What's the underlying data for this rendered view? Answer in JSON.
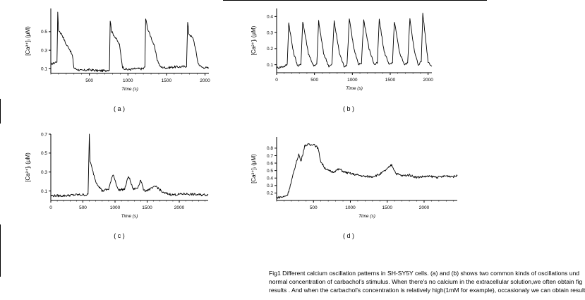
{
  "caption": {
    "line1": "Fig1  Different calcium oscillation patterns in SH-SY5Y cells. (a) and (b) shows two common kinds of  oscillations und",
    "line2": "normal  concentration of carbachol's stimulus. When there's no calcium in the extracellular solution,we often obtain fig",
    "line3": "results . And when the carbachol's concentration is relatively high(1mM for example), occasionaly we can obtain result"
  },
  "chart_data": [
    {
      "panel": "a",
      "type": "line",
      "label": "( a )",
      "ylabel": "[Ca²⁺]ᵢ (μM)",
      "xlabel": "Time (s)",
      "xlim": [
        0,
        2050
      ],
      "ylim": [
        0.05,
        0.75
      ],
      "xticks": [
        500,
        1000,
        1500,
        2000
      ],
      "yticks": [
        0.1,
        0.3,
        0.5
      ],
      "x": [
        0,
        40,
        80,
        90,
        100,
        150,
        200,
        240,
        260,
        280,
        300,
        320,
        400,
        500,
        600,
        700,
        760,
        770,
        790,
        850,
        890,
        930,
        960,
        1000,
        1100,
        1200,
        1220,
        1230,
        1260,
        1300,
        1340,
        1380,
        1420,
        1500,
        1600,
        1700,
        1760,
        1775,
        1790,
        1850,
        1880,
        1910,
        1950,
        2000,
        2050
      ],
      "y": [
        0.15,
        0.16,
        0.18,
        0.7,
        0.52,
        0.46,
        0.36,
        0.32,
        0.28,
        0.24,
        0.11,
        0.1,
        0.08,
        0.09,
        0.08,
        0.08,
        0.09,
        0.62,
        0.5,
        0.42,
        0.36,
        0.12,
        0.1,
        0.09,
        0.1,
        0.1,
        0.12,
        0.64,
        0.52,
        0.44,
        0.35,
        0.2,
        0.12,
        0.11,
        0.12,
        0.12,
        0.13,
        0.6,
        0.48,
        0.42,
        0.3,
        0.16,
        0.12,
        0.11,
        0.11
      ]
    },
    {
      "panel": "b",
      "type": "line",
      "label": "( b )",
      "ylabel": "[Ca²⁺]ᵢ (μM)",
      "xlabel": "Time (s)",
      "xlim": [
        0,
        2050
      ],
      "ylim": [
        0.05,
        0.45
      ],
      "xticks": [
        0,
        500,
        1000,
        1500,
        2000
      ],
      "yticks": [
        0.1,
        0.2,
        0.3,
        0.4
      ],
      "x": [
        0,
        100,
        140,
        160,
        220,
        280,
        320,
        345,
        420,
        490,
        530,
        555,
        620,
        690,
        730,
        760,
        830,
        890,
        930,
        960,
        1020,
        1080,
        1120,
        1150,
        1220,
        1290,
        1330,
        1355,
        1420,
        1490,
        1530,
        1555,
        1620,
        1690,
        1730,
        1760,
        1820,
        1870,
        1910,
        1930,
        2000,
        2050
      ],
      "y": [
        0.08,
        0.09,
        0.1,
        0.36,
        0.18,
        0.09,
        0.1,
        0.37,
        0.17,
        0.09,
        0.1,
        0.37,
        0.17,
        0.09,
        0.1,
        0.37,
        0.17,
        0.09,
        0.1,
        0.39,
        0.2,
        0.1,
        0.11,
        0.38,
        0.2,
        0.1,
        0.11,
        0.38,
        0.18,
        0.1,
        0.11,
        0.37,
        0.18,
        0.1,
        0.11,
        0.39,
        0.18,
        0.1,
        0.12,
        0.42,
        0.12,
        0.09
      ]
    },
    {
      "panel": "c",
      "type": "line",
      "label": "( c )",
      "ylabel": "[Ca²⁺]ᵢ (μM)",
      "xlabel": "Time (s)",
      "xlim": [
        0,
        2450
      ],
      "ylim": [
        0,
        0.7
      ],
      "xticks": [
        0,
        500,
        1000,
        1500,
        2000
      ],
      "yticks": [
        0.1,
        0.3,
        0.5,
        0.7
      ],
      "x": [
        0,
        200,
        400,
        580,
        600,
        610,
        640,
        700,
        800,
        900,
        970,
        1050,
        1150,
        1210,
        1280,
        1350,
        1400,
        1450,
        1550,
        1640,
        1750,
        1900,
        2100,
        2300,
        2450
      ],
      "y": [
        0.05,
        0.05,
        0.06,
        0.06,
        0.7,
        0.42,
        0.34,
        0.2,
        0.1,
        0.12,
        0.28,
        0.11,
        0.12,
        0.26,
        0.12,
        0.13,
        0.22,
        0.1,
        0.12,
        0.15,
        0.08,
        0.06,
        0.07,
        0.06,
        0.06
      ]
    },
    {
      "panel": "d",
      "type": "line",
      "label": "( d )",
      "ylabel": "[Ca²⁺]ᵢ (μM)",
      "xlabel": "Time (s)",
      "xlim": [
        0,
        2450
      ],
      "ylim": [
        0.1,
        0.95
      ],
      "xticks": [
        500,
        1000,
        1500,
        2000
      ],
      "yticks": [
        0.2,
        0.3,
        0.4,
        0.5,
        0.6,
        0.7,
        0.8
      ],
      "x": [
        0,
        100,
        150,
        200,
        250,
        300,
        330,
        380,
        420,
        460,
        500,
        560,
        600,
        650,
        700,
        760,
        850,
        920,
        1000,
        1100,
        1200,
        1300,
        1400,
        1500,
        1560,
        1620,
        1700,
        1800,
        1900,
        2000,
        2100,
        2200,
        2300,
        2400,
        2450
      ],
      "y": [
        0.14,
        0.15,
        0.18,
        0.35,
        0.55,
        0.72,
        0.62,
        0.83,
        0.85,
        0.84,
        0.86,
        0.8,
        0.62,
        0.54,
        0.5,
        0.48,
        0.52,
        0.48,
        0.46,
        0.44,
        0.42,
        0.42,
        0.45,
        0.52,
        0.58,
        0.46,
        0.43,
        0.44,
        0.41,
        0.42,
        0.42,
        0.41,
        0.43,
        0.42,
        0.43
      ]
    }
  ]
}
